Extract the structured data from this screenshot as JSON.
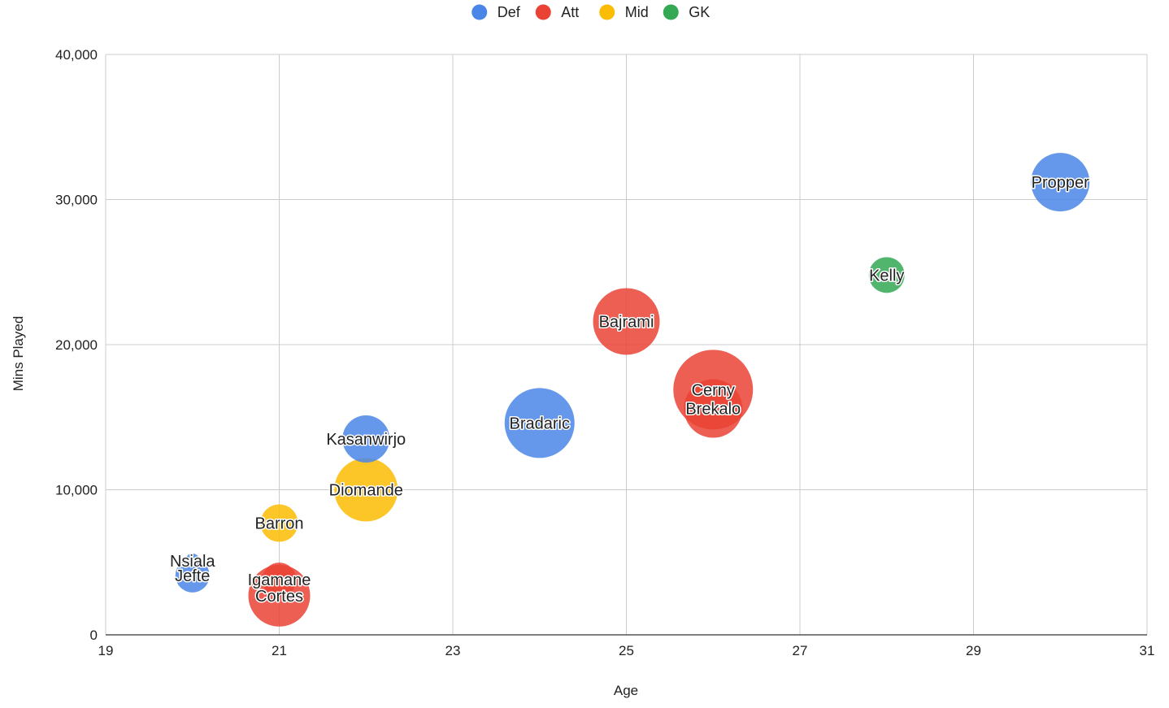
{
  "chart_data": {
    "type": "scatter",
    "subtype": "bubble",
    "xlabel": "Age",
    "ylabel": "Mins Played",
    "xlim": [
      19,
      31
    ],
    "ylim": [
      0,
      40000
    ],
    "xticks": [
      "19",
      "21",
      "23",
      "25",
      "27",
      "29",
      "31"
    ],
    "yticks": [
      "0",
      "10,000",
      "20,000",
      "30,000",
      "40,000"
    ],
    "grid": true,
    "legend_position": "top",
    "series": [
      {
        "name": "Def",
        "color": "#4a86e8"
      },
      {
        "name": "Att",
        "color": "#ea4335"
      },
      {
        "name": "Mid",
        "color": "#fbbc04"
      },
      {
        "name": "GK",
        "color": "#34a853"
      }
    ],
    "points": [
      {
        "label": "Propper",
        "group": "Def",
        "x": 30,
        "y": 31200,
        "size": 36
      },
      {
        "label": "Kelly",
        "group": "GK",
        "x": 28,
        "y": 24800,
        "size": 22
      },
      {
        "label": "Bajrami",
        "group": "Att",
        "x": 25,
        "y": 21600,
        "size": 41
      },
      {
        "label": "Cerny",
        "group": "Att",
        "x": 26,
        "y": 16900,
        "size": 49
      },
      {
        "label": "Brekalo",
        "group": "Att",
        "x": 26,
        "y": 15600,
        "size": 36
      },
      {
        "label": "Bradaric",
        "group": "Def",
        "x": 24,
        "y": 14600,
        "size": 43
      },
      {
        "label": "Kasanwirjo",
        "group": "Def",
        "x": 22,
        "y": 13500,
        "size": 29
      },
      {
        "label": "Diomande",
        "group": "Mid",
        "x": 22,
        "y": 10000,
        "size": 39
      },
      {
        "label": "Barron",
        "group": "Mid",
        "x": 21,
        "y": 7700,
        "size": 23
      },
      {
        "label": "Nsiala",
        "group": "Def",
        "x": 20,
        "y": 5100,
        "size": 9
      },
      {
        "label": "Jefte",
        "group": "Def",
        "x": 20,
        "y": 4100,
        "size": 21
      },
      {
        "label": "Igamane",
        "group": "Att",
        "x": 21,
        "y": 3800,
        "size": 21
      },
      {
        "label": "Cortes",
        "group": "Att",
        "x": 21,
        "y": 2700,
        "size": 38
      }
    ]
  }
}
